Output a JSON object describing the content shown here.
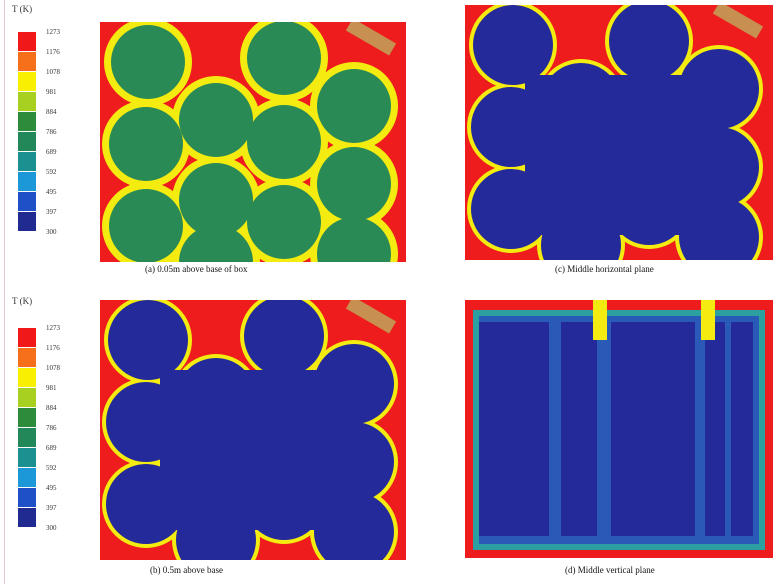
{
  "colorbar": {
    "title": "T (K)",
    "labels": [
      "1273",
      "1176",
      "1078",
      "981",
      "884",
      "786",
      "689",
      "592",
      "495",
      "397",
      "300"
    ],
    "colors": [
      "#f01818",
      "#f6701c",
      "#f8f000",
      "#a8d020",
      "#2c8c3c",
      "#22885a",
      "#1a9090",
      "#1c98d8",
      "#2050c8",
      "#202a90"
    ]
  },
  "panels": [
    {
      "id": "a",
      "caption": "(a)  0.05m above base of box"
    },
    {
      "id": "c",
      "caption": "(c)  Middle horizontal plane"
    },
    {
      "id": "b",
      "caption": "(b)  0.5m above base"
    },
    {
      "id": "d",
      "caption": "(d)  Middle vertical plane"
    }
  ],
  "colors": {
    "hot": "#ee1c1c",
    "ring": "#f4ec10",
    "green": "#2a8a55",
    "blue": "#242a9a"
  }
}
